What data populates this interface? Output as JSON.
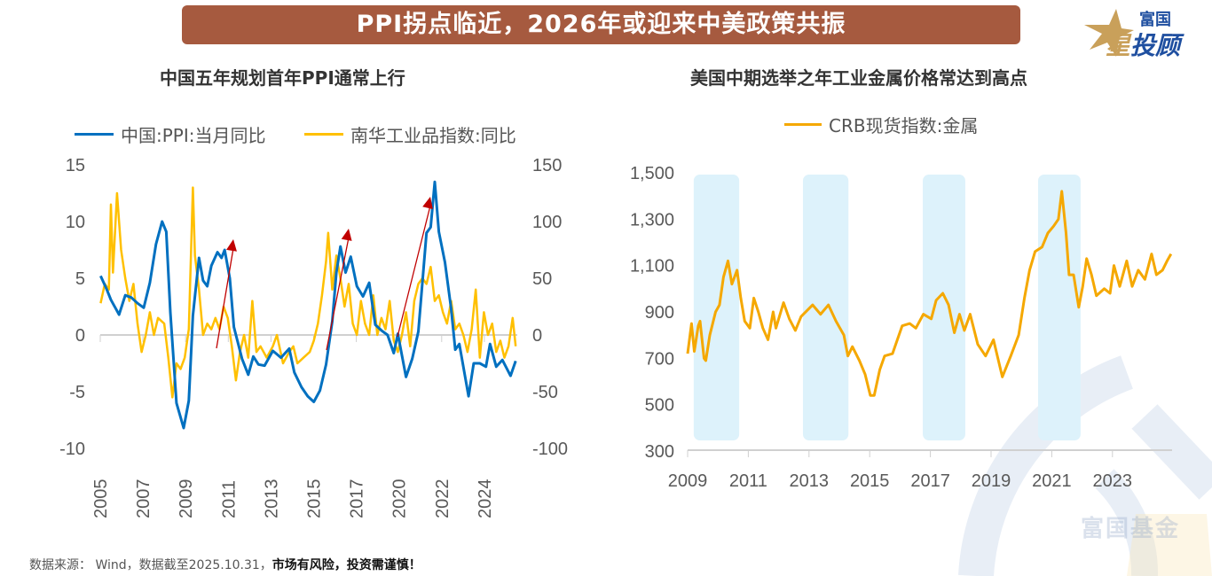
{
  "header": {
    "title": "PPI拐点临近，2026年或迎来中美政策共振"
  },
  "logo": {
    "top": "富国",
    "main_accent": "星",
    "main": "投顾"
  },
  "watermark": "富国基金",
  "footer": {
    "source": "数据来源： Wind，数据截至2025.10.31，",
    "warning": "市场有风险，投资需谨慎！"
  },
  "colors": {
    "banner": "#A65A3F",
    "ppi": "#0070C0",
    "nanhua": "#FFC000",
    "crb": "#F5A800",
    "band": "#DDF2FB",
    "arrow": "#C00000"
  },
  "chart_data": [
    {
      "type": "line",
      "title": "中国五年规划首年PPI通常上行",
      "x_tick_labels": [
        "2005",
        "2007",
        "2009",
        "2011",
        "2013",
        "2015",
        "2017",
        "2020",
        "2022",
        "2024"
      ],
      "y_left": {
        "ticks": [
          "15",
          "10",
          "5",
          "0",
          "-5",
          "-10"
        ],
        "range": [
          -10,
          15
        ]
      },
      "y_right": {
        "ticks": [
          "150",
          "100",
          "50",
          "0",
          "-50",
          "-100"
        ],
        "range": [
          -100,
          150
        ]
      },
      "legend": "top",
      "annotations": "three red upward arrows marking PPI upturns",
      "series": [
        {
          "name": "中国:PPI:当月同比",
          "axis": "left",
          "x": [
            2005.5,
            2005.8,
            2006.0,
            2006.4,
            2006.7,
            2007.0,
            2007.3,
            2007.6,
            2007.9,
            2008.2,
            2008.5,
            2008.7,
            2008.9,
            2009.2,
            2009.55,
            2009.8,
            2010.0,
            2010.3,
            2010.5,
            2010.7,
            2010.9,
            2011.2,
            2011.4,
            2011.55,
            2011.8,
            2012.0,
            2012.4,
            2012.7,
            2012.95,
            2013.2,
            2013.5,
            2013.9,
            2014.3,
            2014.7,
            2014.95,
            2015.3,
            2015.6,
            2015.9,
            2016.2,
            2016.5,
            2016.8,
            2017.0,
            2017.2,
            2017.45,
            2017.7,
            2018.0,
            2018.3,
            2018.6,
            2018.9,
            2019.2,
            2019.5,
            2019.8,
            2020.0,
            2020.4,
            2020.7,
            2021.0,
            2021.4,
            2021.6,
            2021.8,
            2022.0,
            2022.3,
            2022.6,
            2022.8,
            2023.0,
            2023.45,
            2023.7,
            2024.0,
            2024.3,
            2024.5,
            2024.8,
            2025.1,
            2025.5,
            2025.75
          ],
          "y": [
            5.2,
            4.0,
            3.1,
            1.8,
            3.5,
            3.3,
            2.8,
            2.4,
            4.6,
            8.0,
            10.0,
            9.1,
            2.0,
            -6.0,
            -8.2,
            -5.8,
            1.7,
            6.8,
            4.8,
            4.3,
            6.1,
            7.3,
            6.8,
            7.5,
            5.0,
            0.7,
            -2.1,
            -3.5,
            -1.9,
            -2.6,
            -2.7,
            -1.4,
            -2.0,
            -1.2,
            -3.3,
            -4.6,
            -5.4,
            -5.9,
            -4.9,
            -2.6,
            1.2,
            5.5,
            7.8,
            5.5,
            6.9,
            4.3,
            3.4,
            4.6,
            0.9,
            0.4,
            0.0,
            -1.6,
            0.1,
            -3.7,
            -2.1,
            0.3,
            9.0,
            9.5,
            13.5,
            9.1,
            6.4,
            2.3,
            -1.3,
            -0.8,
            -5.4,
            -2.5,
            -2.5,
            -2.8,
            -0.8,
            -2.8,
            -2.2,
            -3.6,
            -2.3
          ]
        },
        {
          "name": "南华工业品指数:同比",
          "axis": "right",
          "x": [
            2005.5,
            2005.7,
            2005.9,
            2006.0,
            2006.1,
            2006.3,
            2006.5,
            2006.7,
            2006.9,
            2007.1,
            2007.3,
            2007.5,
            2007.7,
            2007.9,
            2008.1,
            2008.3,
            2008.6,
            2008.8,
            2009.0,
            2009.2,
            2009.4,
            2009.6,
            2009.8,
            2010.0,
            2010.1,
            2010.3,
            2010.5,
            2010.7,
            2010.9,
            2011.1,
            2011.3,
            2011.5,
            2011.7,
            2011.9,
            2012.1,
            2012.3,
            2012.5,
            2012.7,
            2012.9,
            2013.1,
            2013.3,
            2013.6,
            2013.9,
            2014.1,
            2014.4,
            2014.7,
            2014.9,
            2015.1,
            2015.4,
            2015.7,
            2015.9,
            2016.1,
            2016.3,
            2016.5,
            2016.6,
            2016.8,
            2017.0,
            2017.2,
            2017.4,
            2017.6,
            2017.8,
            2018.0,
            2018.2,
            2018.4,
            2018.6,
            2018.8,
            2019.0,
            2019.2,
            2019.4,
            2019.6,
            2019.8,
            2020.0,
            2020.2,
            2020.4,
            2020.6,
            2020.8,
            2021.0,
            2021.2,
            2021.4,
            2021.6,
            2021.8,
            2022.0,
            2022.2,
            2022.4,
            2022.6,
            2022.8,
            2023.0,
            2023.2,
            2023.4,
            2023.6,
            2023.8,
            2024.0,
            2024.2,
            2024.4,
            2024.6,
            2024.8,
            2025.0,
            2025.2,
            2025.4,
            2025.6,
            2025.75
          ],
          "y": [
            28,
            45,
            40,
            115,
            55,
            125,
            75,
            50,
            30,
            45,
            10,
            -15,
            0,
            20,
            0,
            15,
            10,
            -20,
            -55,
            -25,
            -30,
            -20,
            5,
            130,
            70,
            40,
            0,
            10,
            5,
            15,
            5,
            25,
            15,
            -10,
            -40,
            -15,
            0,
            -20,
            30,
            -15,
            -10,
            -20,
            -10,
            0,
            -25,
            -15,
            -10,
            -25,
            -20,
            -15,
            -5,
            10,
            35,
            65,
            90,
            40,
            70,
            50,
            25,
            45,
            10,
            0,
            30,
            10,
            0,
            35,
            0,
            15,
            5,
            30,
            -5,
            -15,
            0,
            20,
            -10,
            30,
            45,
            50,
            45,
            60,
            30,
            35,
            20,
            10,
            30,
            5,
            10,
            0,
            -15,
            5,
            40,
            -20,
            20,
            0,
            10,
            -15,
            -5,
            -20,
            -10,
            15,
            -10
          ]
        }
      ]
    },
    {
      "type": "line",
      "title": "美国中期选举之年工业金属价格常达到高点",
      "x_tick_labels": [
        "2009",
        "2011",
        "2013",
        "2015",
        "2017",
        "2019",
        "2021",
        "2023"
      ],
      "y_ticks": [
        "1,500",
        "1,300",
        "1,100",
        "900",
        "700",
        "500",
        "300"
      ],
      "ylim": [
        300,
        1500
      ],
      "legend": "top",
      "shaded_bands": [
        [
          2009.2,
          2010.7
        ],
        [
          2012.8,
          2014.3
        ],
        [
          2016.75,
          2018.15
        ],
        [
          2020.55,
          2021.95
        ]
      ],
      "series": [
        {
          "name": "CRB现货指数:金属",
          "x": [
            2009.0,
            2009.13,
            2009.22,
            2009.35,
            2009.41,
            2009.54,
            2009.6,
            2009.73,
            2009.92,
            2010.05,
            2010.18,
            2010.33,
            2010.46,
            2010.63,
            2010.75,
            2010.88,
            2011.05,
            2011.18,
            2011.33,
            2011.48,
            2011.65,
            2011.82,
            2011.91,
            2012.16,
            2012.35,
            2012.55,
            2012.74,
            2013.12,
            2013.38,
            2013.64,
            2013.89,
            2014.15,
            2014.28,
            2014.43,
            2014.66,
            2014.85,
            2015.02,
            2015.15,
            2015.33,
            2015.49,
            2015.75,
            2016.07,
            2016.32,
            2016.52,
            2016.77,
            2017.03,
            2017.19,
            2017.41,
            2017.6,
            2017.79,
            2017.96,
            2018.12,
            2018.31,
            2018.56,
            2018.82,
            2019.08,
            2019.37,
            2019.65,
            2019.91,
            2020.1,
            2020.27,
            2020.45,
            2020.68,
            2020.87,
            2021.06,
            2021.22,
            2021.33,
            2021.47,
            2021.57,
            2021.72,
            2021.89,
            2022.02,
            2022.15,
            2022.31,
            2022.47,
            2022.73,
            2022.92,
            2023.05,
            2023.24,
            2023.47,
            2023.65,
            2023.85,
            2024.07,
            2024.29,
            2024.45,
            2024.65,
            2024.8,
            2024.93
          ],
          "y": [
            720,
            850,
            730,
            840,
            860,
            700,
            690,
            800,
            900,
            930,
            1050,
            1120,
            1020,
            1080,
            960,
            860,
            830,
            960,
            900,
            830,
            780,
            900,
            830,
            940,
            870,
            820,
            880,
            930,
            890,
            930,
            860,
            800,
            710,
            750,
            690,
            630,
            540,
            540,
            650,
            710,
            720,
            840,
            850,
            830,
            890,
            870,
            950,
            980,
            930,
            810,
            890,
            820,
            890,
            760,
            710,
            780,
            620,
            710,
            800,
            960,
            1080,
            1160,
            1180,
            1240,
            1270,
            1300,
            1420,
            1240,
            1060,
            1060,
            920,
            1010,
            1130,
            1060,
            970,
            1000,
            980,
            1100,
            1010,
            1120,
            1010,
            1080,
            1040,
            1150,
            1060,
            1080,
            1120,
            1150
          ]
        }
      ]
    }
  ]
}
